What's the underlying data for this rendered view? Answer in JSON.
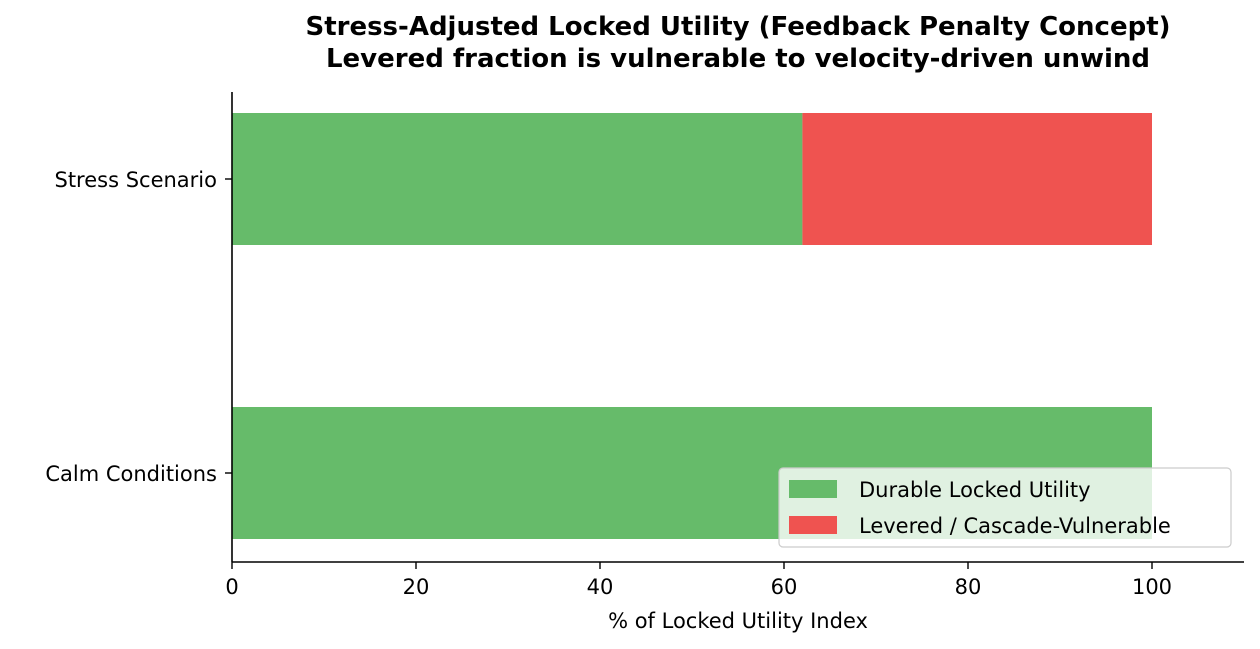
{
  "chart_data": {
    "type": "bar",
    "orientation": "horizontal",
    "stacked": true,
    "title": "Stress-Adjusted Locked Utility (Feedback Penalty Concept)",
    "subtitle": "Levered fraction is vulnerable to velocity-driven unwind",
    "xlabel": "% of Locked Utility Index",
    "ylabel": "",
    "xlim": [
      0,
      110
    ],
    "xticks": [
      0,
      20,
      40,
      60,
      80,
      100
    ],
    "grid": false,
    "legend_position": "lower-right",
    "categories": [
      "Calm Conditions",
      "Stress Scenario"
    ],
    "series": [
      {
        "name": "Durable Locked Utility",
        "values": [
          100,
          62
        ],
        "color": "#66bb6a"
      },
      {
        "name": "Levered / Cascade-Vulnerable",
        "values": [
          0,
          38
        ],
        "color": "#ef5350"
      }
    ]
  }
}
